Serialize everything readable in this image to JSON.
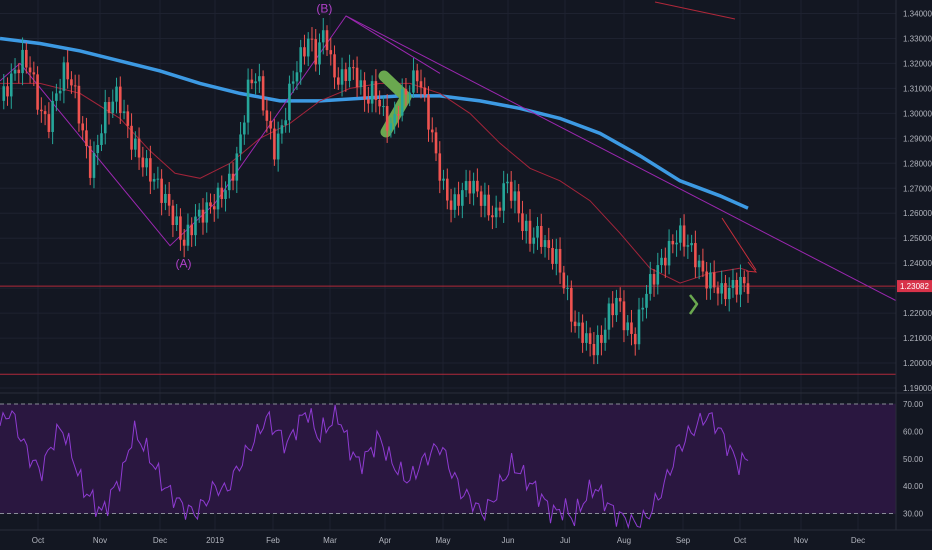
{
  "chart_data": [
    {
      "type": "candlestick",
      "title": "",
      "x_ticks": [
        "Oct",
        "Nov",
        "Dec",
        "2019",
        "Feb",
        "Mar",
        "Apr",
        "May",
        "Jun",
        "Jul",
        "Aug",
        "Sep",
        "Oct",
        "Nov",
        "Dec"
      ],
      "y_ticks": [
        "1.34000",
        "1.33000",
        "1.32000",
        "1.31000",
        "1.30000",
        "1.29000",
        "1.28000",
        "1.27000",
        "1.26000",
        "1.25000",
        "1.24000",
        "1.23000",
        "1.22000",
        "1.21000",
        "1.20000",
        "1.19000"
      ],
      "ylim": [
        1.188,
        1.343
      ],
      "current_price": 1.23082,
      "current_price_label": "1.23082",
      "horizontal_levels": [
        1.23082,
        1.1955
      ],
      "wave_labels": [
        {
          "text": "(A)",
          "x": 42.2,
          "y": 1.2455
        },
        {
          "text": "(B)",
          "x": 74.6,
          "y": 1.3395
        }
      ],
      "series": [
        {
          "kind": "close",
          "x": [
            0,
            3,
            5,
            7,
            9,
            11,
            13,
            15,
            17,
            19,
            21,
            24,
            27,
            30,
            33,
            36,
            39,
            42.2,
            45,
            48,
            51,
            53,
            55,
            57,
            59,
            61,
            63,
            65,
            67,
            69,
            71,
            73,
            74.6,
            76,
            78,
            80,
            82,
            84,
            86,
            88,
            90,
            92,
            94,
            96,
            98,
            100,
            102,
            104,
            106,
            108,
            110,
            112,
            114,
            116,
            118,
            120,
            122,
            124,
            126,
            128,
            130,
            132,
            134,
            136,
            138,
            140,
            142,
            144,
            146,
            148,
            150,
            152,
            154,
            156,
            158,
            160,
            162,
            164,
            166,
            168,
            170,
            172
          ],
          "y": [
            1.305,
            1.315,
            1.322,
            1.318,
            1.302,
            1.295,
            1.308,
            1.318,
            1.31,
            1.292,
            1.276,
            1.3,
            1.308,
            1.29,
            1.28,
            1.272,
            1.262,
            1.248,
            1.258,
            1.262,
            1.268,
            1.273,
            1.286,
            1.31,
            1.316,
            1.3,
            1.285,
            1.295,
            1.312,
            1.322,
            1.33,
            1.322,
            1.335,
            1.32,
            1.312,
            1.318,
            1.315,
            1.305,
            1.31,
            1.3,
            1.294,
            1.305,
            1.31,
            1.316,
            1.302,
            1.285,
            1.27,
            1.262,
            1.268,
            1.272,
            1.268,
            1.262,
            1.258,
            1.272,
            1.268,
            1.256,
            1.25,
            1.252,
            1.245,
            1.242,
            1.23,
            1.215,
            1.212,
            1.206,
            1.208,
            1.22,
            1.226,
            1.214,
            1.21,
            1.226,
            1.234,
            1.24,
            1.246,
            1.252,
            1.248,
            1.242,
            1.234,
            1.232,
            1.228,
            1.23,
            1.232,
            1.231
          ]
        }
      ]
    },
    {
      "type": "line",
      "title": "",
      "ylabel": "",
      "y_ticks": [
        "70.00",
        "60.00",
        "50.00",
        "40.00",
        "30.00"
      ],
      "ylim": [
        24,
        74
      ],
      "bands": [
        70,
        30
      ],
      "series": [
        {
          "values": [
            62,
            68,
            58,
            50,
            45,
            55,
            62,
            52,
            40,
            35,
            30,
            38,
            45,
            60,
            55,
            48,
            40,
            36,
            32,
            30,
            34,
            40,
            38,
            45,
            52,
            58,
            65,
            60,
            55,
            62,
            68,
            58,
            62,
            66,
            55,
            48,
            52,
            58,
            50,
            45,
            42,
            48,
            52,
            55,
            46,
            38,
            35,
            30,
            34,
            42,
            48,
            44,
            40,
            35,
            30,
            32,
            28,
            35,
            40,
            35,
            30,
            28,
            26,
            28,
            34,
            42,
            52,
            58,
            62,
            66,
            62,
            55,
            48,
            50
          ]
        }
      ]
    }
  ]
}
